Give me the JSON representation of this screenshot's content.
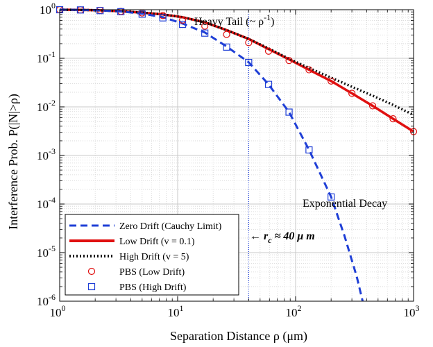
{
  "chart_data": {
    "type": "line",
    "xscale": "log",
    "yscale": "log",
    "xlim": [
      1,
      1000
    ],
    "ylim": [
      1e-06,
      1
    ],
    "grid": true,
    "xlabel": "Separation Distance ρ (μm)",
    "ylabel": "Interference Prob. P(|N|>ρ)",
    "xticks": [
      {
        "value": 1,
        "base": "10",
        "exp": "0"
      },
      {
        "value": 10,
        "base": "10",
        "exp": "1"
      },
      {
        "value": 100,
        "base": "10",
        "exp": "2"
      },
      {
        "value": 1000,
        "base": "10",
        "exp": "3"
      }
    ],
    "yticks": [
      {
        "value": 1,
        "base": "10",
        "exp": "0"
      },
      {
        "value": 0.1,
        "base": "10",
        "exp": "-1"
      },
      {
        "value": 0.01,
        "base": "10",
        "exp": "-2"
      },
      {
        "value": 0.001,
        "base": "10",
        "exp": "-3"
      },
      {
        "value": 0.0001,
        "base": "10",
        "exp": "-4"
      },
      {
        "value": 1e-05,
        "base": "10",
        "exp": "-5"
      },
      {
        "value": 1e-06,
        "base": "10",
        "exp": "-6"
      }
    ],
    "series": [
      {
        "name": "Zero Drift (Cauchy Limit)",
        "style": "dashed",
        "color": "#1f3fd6",
        "x": [
          1,
          1.5,
          2.2,
          3.3,
          5,
          7.5,
          11,
          17,
          26,
          40,
          59,
          88,
          130,
          200,
          260,
          330,
          370
        ],
        "y": [
          1.0,
          0.99,
          0.97,
          0.92,
          0.83,
          0.7,
          0.52,
          0.34,
          0.175,
          0.083,
          0.029,
          0.0078,
          0.0013,
          0.00014,
          2.2e-05,
          3.2e-06,
          1e-06
        ]
      },
      {
        "name": "Low Drift (v = 0.1)",
        "style": "solid",
        "color": "#e01010",
        "x": [
          1,
          1.5,
          2.2,
          3.3,
          5,
          7.5,
          11,
          17,
          26,
          40,
          59,
          88,
          130,
          200,
          300,
          450,
          670,
          1000
        ],
        "y": [
          1.0,
          0.99,
          0.97,
          0.93,
          0.87,
          0.8,
          0.7,
          0.55,
          0.38,
          0.25,
          0.155,
          0.095,
          0.058,
          0.034,
          0.019,
          0.0105,
          0.0057,
          0.0031
        ]
      },
      {
        "name": "High Drift (v = 5)",
        "style": "dotted",
        "color": "#111111",
        "x": [
          1,
          1.5,
          2.2,
          3.3,
          5,
          7.5,
          11,
          17,
          26,
          40,
          59,
          88,
          130,
          200,
          300,
          450,
          670,
          1000
        ],
        "y": [
          1.0,
          0.99,
          0.97,
          0.93,
          0.87,
          0.8,
          0.7,
          0.55,
          0.38,
          0.25,
          0.16,
          0.098,
          0.063,
          0.04,
          0.026,
          0.017,
          0.011,
          0.0068
        ]
      },
      {
        "name": "PBS (Low Drift)",
        "style": "markers",
        "marker": "circle",
        "color": "#e01010",
        "x": [
          1,
          1.5,
          2.2,
          3.3,
          5,
          7.5,
          11,
          17,
          26,
          40,
          59,
          88,
          130,
          200,
          300,
          450,
          670,
          1000
        ],
        "y": [
          1.0,
          0.99,
          0.97,
          0.92,
          0.86,
          0.76,
          0.61,
          0.46,
          0.31,
          0.21,
          0.14,
          0.09,
          0.058,
          0.034,
          0.019,
          0.0105,
          0.0057,
          0.0031
        ]
      },
      {
        "name": "PBS (High Drift)",
        "style": "markers",
        "marker": "square",
        "color": "#1f3fd6",
        "x": [
          1,
          1.5,
          2.2,
          3.3,
          5,
          7.5,
          11,
          17,
          26,
          40,
          59,
          88,
          130,
          200
        ],
        "y": [
          1.0,
          0.99,
          0.96,
          0.91,
          0.81,
          0.68,
          0.5,
          0.33,
          0.17,
          0.082,
          0.029,
          0.0078,
          0.0013,
          0.00014
        ]
      }
    ],
    "annotations": [
      {
        "id": "heavy-tail",
        "text": "Heavy Tail (~ ρ",
        "sup": "-1",
        "close": ")"
      },
      {
        "id": "exp-decay",
        "text": "Exponential Decay",
        "color": "#1f3fd6"
      },
      {
        "id": "rc",
        "text": "← ",
        "var": "r",
        "sub": "c",
        "rest": " ≈ 40 μ m",
        "color": "#1f3fd6"
      }
    ],
    "vline": {
      "x": 40,
      "style": "dotted",
      "color": "#1f3fd6"
    },
    "legend_position": "bottom-left"
  }
}
